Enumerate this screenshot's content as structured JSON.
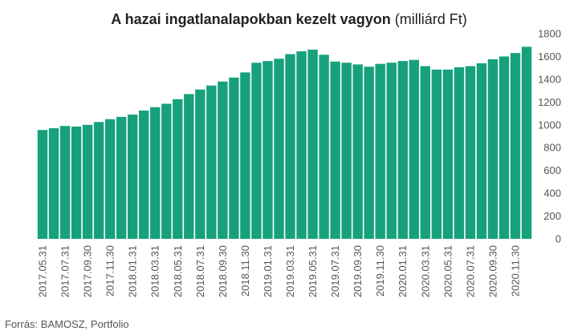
{
  "chart_data": {
    "type": "bar",
    "title": "A hazai ingatlanalapokban kezelt vagyon",
    "title_unit": "(milliárd Ft)",
    "source": "Forrás: BAMOSZ, Portfolio",
    "bar_color": "#16a17c",
    "ylim": [
      0,
      1800
    ],
    "yticks": [
      0,
      200,
      400,
      600,
      800,
      1000,
      1200,
      1400,
      1600,
      1800
    ],
    "y_axis_position": "right",
    "grid": false,
    "xtick_labels": [
      "2017.05.31",
      "2017.07.31",
      "2017.09.30",
      "2017.11.30",
      "2018.01.31",
      "2018.03.31",
      "2018.05.31",
      "2018.07.31",
      "2018.09.30",
      "2018.11.30",
      "2019.01.31",
      "2019.03.31",
      "2019.05.31",
      "2019.07.31",
      "2019.09.30",
      "2019.11.30",
      "2020.01.31",
      "2020.03.31",
      "2020.05.31",
      "2020.07.31",
      "2020.09.30",
      "2020.11.30"
    ],
    "categories": [
      "2017.05.31",
      "2017.06.30",
      "2017.07.31",
      "2017.08.31",
      "2017.09.30",
      "2017.10.31",
      "2017.11.30",
      "2017.12.31",
      "2018.01.31",
      "2018.02.28",
      "2018.03.31",
      "2018.04.30",
      "2018.05.31",
      "2018.06.30",
      "2018.07.31",
      "2018.08.31",
      "2018.09.30",
      "2018.10.31",
      "2018.11.30",
      "2018.12.31",
      "2019.01.31",
      "2019.02.28",
      "2019.03.31",
      "2019.04.30",
      "2019.05.31",
      "2019.06.30",
      "2019.07.31",
      "2019.08.31",
      "2019.09.30",
      "2019.10.31",
      "2019.11.30",
      "2019.12.31",
      "2020.01.31",
      "2020.02.29",
      "2020.03.31",
      "2020.04.30",
      "2020.05.31",
      "2020.06.30",
      "2020.07.31",
      "2020.08.31",
      "2020.09.30",
      "2020.10.31",
      "2020.11.30",
      "2020.12.31"
    ],
    "values": [
      955,
      970,
      990,
      985,
      1000,
      1025,
      1050,
      1070,
      1090,
      1125,
      1155,
      1185,
      1225,
      1270,
      1310,
      1345,
      1380,
      1415,
      1460,
      1545,
      1560,
      1580,
      1620,
      1645,
      1660,
      1615,
      1555,
      1545,
      1530,
      1510,
      1535,
      1545,
      1560,
      1570,
      1515,
      1485,
      1485,
      1505,
      1515,
      1540,
      1575,
      1600,
      1630,
      1685
    ]
  }
}
